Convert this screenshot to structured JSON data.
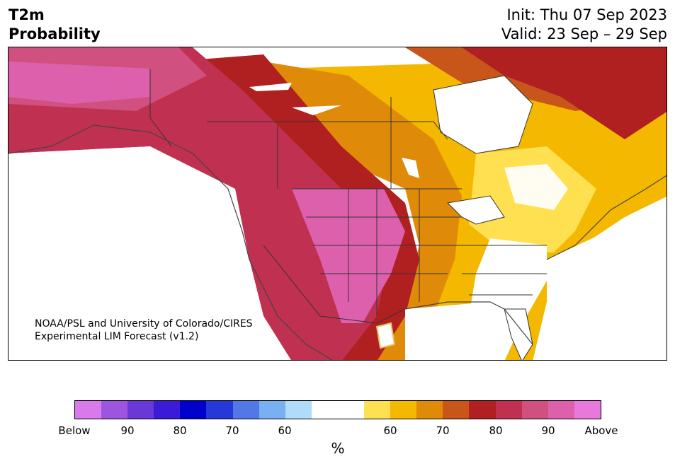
{
  "title": {
    "left_line1": "T2m",
    "left_line2": "Probability",
    "init": "Init: Thu 07 Sep 2023",
    "valid": "Valid: 23 Sep – 29 Sep"
  },
  "credit": {
    "line1": "NOAA/PSL and University of Colorado/CIRES",
    "line2": "Experimental LIM Forecast (v1.2)"
  },
  "colorbar": {
    "colors": [
      "#d879ec",
      "#9d55e0",
      "#6a38d6",
      "#3b1ad8",
      "#0000cc",
      "#2738d8",
      "#5278e8",
      "#78b0f2",
      "#b0dcfa",
      "#ffffff",
      "#ffffff",
      "#ffe050",
      "#f4b800",
      "#e08a0a",
      "#c8561a",
      "#b02020",
      "#c03050",
      "#d05080",
      "#dc60ac",
      "#e878dc"
    ],
    "tick_labels": [
      "Below",
      "90",
      "80",
      "70",
      "60",
      "60",
      "70",
      "80",
      "90",
      "Above"
    ],
    "unit": "%"
  },
  "legend_colors": {
    "above_high": "#e878dc",
    "above_mid": "#c03050",
    "above_low": "#ffe050",
    "neutral": "#ffffff",
    "below": "#5278e8"
  }
}
